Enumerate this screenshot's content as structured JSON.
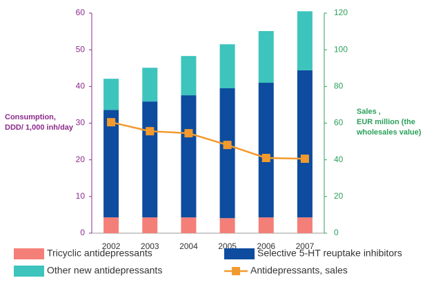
{
  "chart_data": {
    "type": "bar",
    "stacked": true,
    "categories": [
      "2002",
      "2003",
      "2004",
      "2005",
      "2006",
      "2007"
    ],
    "y_label": [
      "Consumption,",
      "DDD/ 1,000 inh/day"
    ],
    "y2_label": [
      "Sales ,",
      "EUR million (the",
      "wholesales value)"
    ],
    "ylim": [
      0,
      60
    ],
    "yticks": [
      0,
      10,
      20,
      30,
      40,
      50,
      60
    ],
    "y2lim": [
      0,
      120
    ],
    "y2ticks": [
      0,
      20,
      40,
      60,
      80,
      100,
      120
    ],
    "legend": "bottom",
    "series": [
      {
        "name": "Tricyclic antidepressants",
        "color": "#f47f78",
        "values": [
          4.3,
          4.3,
          4.3,
          4.1,
          4.3,
          4.3
        ]
      },
      {
        "name": "Selective 5-HT reuptake inhibitors",
        "color": "#0d4c9e",
        "values": [
          29.3,
          31.6,
          33.3,
          35.4,
          36.7,
          40.1
        ]
      },
      {
        "name": "Other new antidepressants",
        "color": "#3cc4bd",
        "values": [
          8.5,
          9.2,
          10.7,
          12.0,
          14.1,
          16.1
        ]
      },
      {
        "name": "Antidepressants, sales",
        "color": "#f29a2e",
        "type": "line",
        "axis": "y2",
        "values": [
          60.5,
          55.6,
          54.5,
          48.1,
          41.0,
          40.6
        ]
      }
    ]
  }
}
